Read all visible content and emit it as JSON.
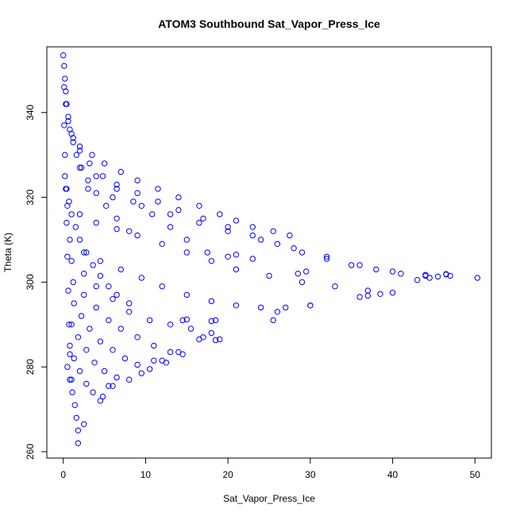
{
  "chart_data": {
    "type": "scatter",
    "title": "ATOM3 Southbound Sat_Vapor_Press_Ice",
    "xlabel": "Sat_Vapor_Press_Ice",
    "ylabel": "Theta (K)",
    "xlim": [
      -2,
      52
    ],
    "ylim": [
      258.5,
      355.5
    ],
    "x_ticks": [
      0,
      10,
      20,
      30,
      40,
      50
    ],
    "y_ticks": [
      260,
      280,
      300,
      320,
      340
    ],
    "grid": false,
    "legend": "none",
    "marker": "open-circle",
    "color": "#0000ff",
    "series": [
      {
        "points": [
          [
            0.0,
            353.5
          ],
          [
            0.1,
            351.0
          ],
          [
            0.2,
            348.0
          ],
          [
            0.3,
            345.0
          ],
          [
            0.4,
            342.0
          ],
          [
            0.6,
            339.0
          ],
          [
            0.8,
            336.0
          ],
          [
            1.2,
            333.0
          ],
          [
            1.6,
            330.0
          ],
          [
            2.2,
            327.0
          ],
          [
            3.0,
            324.0
          ],
          [
            4.0,
            321.0
          ],
          [
            5.2,
            318.0
          ],
          [
            6.5,
            315.0
          ],
          [
            8.0,
            312.0
          ],
          [
            0.1,
            346.0
          ],
          [
            0.3,
            342.0
          ],
          [
            0.6,
            338.0
          ],
          [
            1.2,
            334.0
          ],
          [
            2.0,
            331.0
          ],
          [
            3.2,
            328.0
          ],
          [
            4.8,
            325.0
          ],
          [
            6.5,
            322.0
          ],
          [
            8.5,
            319.0
          ],
          [
            10.8,
            316.0
          ],
          [
            13.0,
            313.0
          ],
          [
            15.0,
            310.0
          ],
          [
            17.5,
            307.0
          ],
          [
            1.0,
            335.0
          ],
          [
            2.0,
            332.0
          ],
          [
            3.5,
            330.0
          ],
          [
            5.0,
            328.0
          ],
          [
            7.0,
            326.0
          ],
          [
            9.0,
            324.0
          ],
          [
            11.5,
            322.0
          ],
          [
            14.0,
            320.0
          ],
          [
            16.5,
            318.0
          ],
          [
            19.0,
            316.0
          ],
          [
            21.0,
            314.5
          ],
          [
            23.0,
            313.0
          ],
          [
            25.5,
            312.0
          ],
          [
            27.5,
            311.0
          ],
          [
            2.0,
            327.0
          ],
          [
            4.0,
            325.0
          ],
          [
            6.5,
            323.0
          ],
          [
            9.0,
            321.0
          ],
          [
            11.5,
            319.0
          ],
          [
            14.0,
            317.0
          ],
          [
            17.0,
            315.0
          ],
          [
            20.0,
            313.0
          ],
          [
            23.0,
            311.0
          ],
          [
            26.0,
            309.0
          ],
          [
            29.0,
            307.0
          ],
          [
            32.0,
            305.5
          ],
          [
            35.0,
            304.0
          ],
          [
            38.0,
            303.0
          ],
          [
            41.0,
            302.0
          ],
          [
            44.0,
            301.7
          ],
          [
            47.0,
            301.5
          ],
          [
            50.3,
            301.0
          ],
          [
            3.0,
            322.0
          ],
          [
            6.0,
            320.0
          ],
          [
            9.5,
            318.0
          ],
          [
            13.0,
            316.0
          ],
          [
            16.5,
            314.0
          ],
          [
            20.0,
            312.0
          ],
          [
            24.0,
            310.0
          ],
          [
            28.0,
            308.0
          ],
          [
            32.0,
            306.0
          ],
          [
            36.0,
            304.0
          ],
          [
            40.0,
            302.5
          ],
          [
            44.0,
            301.5
          ],
          [
            46.5,
            301.8
          ],
          [
            0.5,
            318.0
          ],
          [
            2.0,
            316.0
          ],
          [
            4.0,
            314.0
          ],
          [
            6.5,
            312.5
          ],
          [
            9.0,
            311.0
          ],
          [
            12.0,
            309.0
          ],
          [
            15.0,
            307.0
          ],
          [
            18.0,
            305.0
          ],
          [
            21.0,
            303.0
          ],
          [
            25.0,
            301.5
          ],
          [
            29.0,
            300.0
          ],
          [
            33.0,
            299.0
          ],
          [
            37.0,
            298.0
          ],
          [
            40.0,
            297.5
          ],
          [
            0.8,
            310.0
          ],
          [
            2.5,
            307.0
          ],
          [
            4.5,
            305.0
          ],
          [
            7.0,
            303.0
          ],
          [
            9.5,
            301.0
          ],
          [
            12.0,
            299.0
          ],
          [
            15.0,
            297.0
          ],
          [
            18.0,
            295.5
          ],
          [
            21.0,
            294.5
          ],
          [
            24.0,
            294.0
          ],
          [
            27.0,
            294.0
          ],
          [
            30.0,
            294.5
          ],
          [
            1.0,
            305.0
          ],
          [
            2.5,
            302.0
          ],
          [
            4.0,
            299.0
          ],
          [
            6.0,
            296.0
          ],
          [
            8.0,
            293.0
          ],
          [
            10.5,
            291.0
          ],
          [
            13.0,
            290.0
          ],
          [
            15.5,
            289.0
          ],
          [
            18.0,
            288.0
          ],
          [
            19.0,
            286.5
          ],
          [
            1.2,
            300.0
          ],
          [
            2.5,
            297.0
          ],
          [
            4.0,
            294.0
          ],
          [
            5.5,
            291.0
          ],
          [
            7.0,
            289.0
          ],
          [
            9.0,
            287.0
          ],
          [
            11.0,
            285.0
          ],
          [
            13.0,
            283.5
          ],
          [
            14.5,
            283.0
          ],
          [
            1.3,
            295.0
          ],
          [
            2.2,
            292.0
          ],
          [
            3.2,
            289.0
          ],
          [
            4.5,
            286.0
          ],
          [
            6.0,
            284.0
          ],
          [
            7.5,
            282.0
          ],
          [
            9.0,
            280.5
          ],
          [
            10.5,
            279.5
          ],
          [
            12.0,
            281.5
          ],
          [
            1.0,
            290.0
          ],
          [
            1.8,
            287.0
          ],
          [
            2.8,
            284.0
          ],
          [
            3.8,
            281.0
          ],
          [
            5.0,
            279.0
          ],
          [
            6.5,
            277.5
          ],
          [
            8.0,
            277.0
          ],
          [
            9.5,
            278.5
          ],
          [
            0.8,
            285.0
          ],
          [
            1.3,
            282.0
          ],
          [
            2.0,
            279.0
          ],
          [
            2.8,
            276.0
          ],
          [
            3.6,
            274.0
          ],
          [
            4.8,
            273.0
          ],
          [
            6.0,
            275.5
          ],
          [
            0.5,
            280.0
          ],
          [
            0.8,
            277.0
          ],
          [
            1.1,
            274.0
          ],
          [
            1.4,
            271.0
          ],
          [
            1.6,
            268.0
          ],
          [
            1.8,
            265.0
          ],
          [
            1.8,
            262.0
          ],
          [
            2.5,
            266.5
          ],
          [
            0.2,
            325.0
          ],
          [
            0.4,
            322.0
          ],
          [
            0.7,
            319.0
          ],
          [
            1.0,
            316.0
          ],
          [
            1.5,
            313.0
          ],
          [
            2.0,
            310.0
          ],
          [
            2.8,
            307.0
          ],
          [
            3.6,
            304.0
          ],
          [
            4.5,
            301.5
          ],
          [
            5.5,
            299.0
          ],
          [
            6.5,
            297.0
          ],
          [
            8.0,
            295.0
          ],
          [
            0.1,
            337.0
          ],
          [
            0.2,
            330.0
          ],
          [
            0.3,
            322.0
          ],
          [
            0.4,
            314.0
          ],
          [
            0.5,
            306.0
          ],
          [
            0.6,
            298.0
          ],
          [
            0.7,
            290.0
          ],
          [
            0.8,
            283.0
          ],
          [
            1.0,
            277.0
          ],
          [
            14.5,
            291.0
          ],
          [
            15.0,
            291.2
          ],
          [
            18.0,
            290.8
          ],
          [
            18.5,
            291.0
          ],
          [
            20.0,
            306.0
          ],
          [
            21.0,
            306.5
          ],
          [
            23.0,
            305.5
          ],
          [
            25.5,
            291.0
          ],
          [
            26.0,
            293.0
          ],
          [
            28.5,
            302.0
          ],
          [
            29.5,
            302.5
          ],
          [
            30.0,
            294.5
          ],
          [
            36.0,
            296.5
          ],
          [
            37.0,
            296.8
          ],
          [
            38.5,
            297.2
          ],
          [
            43.0,
            300.5
          ],
          [
            44.5,
            301.0
          ],
          [
            45.5,
            301.3
          ],
          [
            46.5,
            301.9
          ],
          [
            11.0,
            281.5
          ],
          [
            12.5,
            281.0
          ],
          [
            14.0,
            283.5
          ],
          [
            16.5,
            286.5
          ],
          [
            17.0,
            287.0
          ],
          [
            18.5,
            286.3
          ],
          [
            5.5,
            275.5
          ],
          [
            4.5,
            272.0
          ]
        ]
      }
    ]
  }
}
